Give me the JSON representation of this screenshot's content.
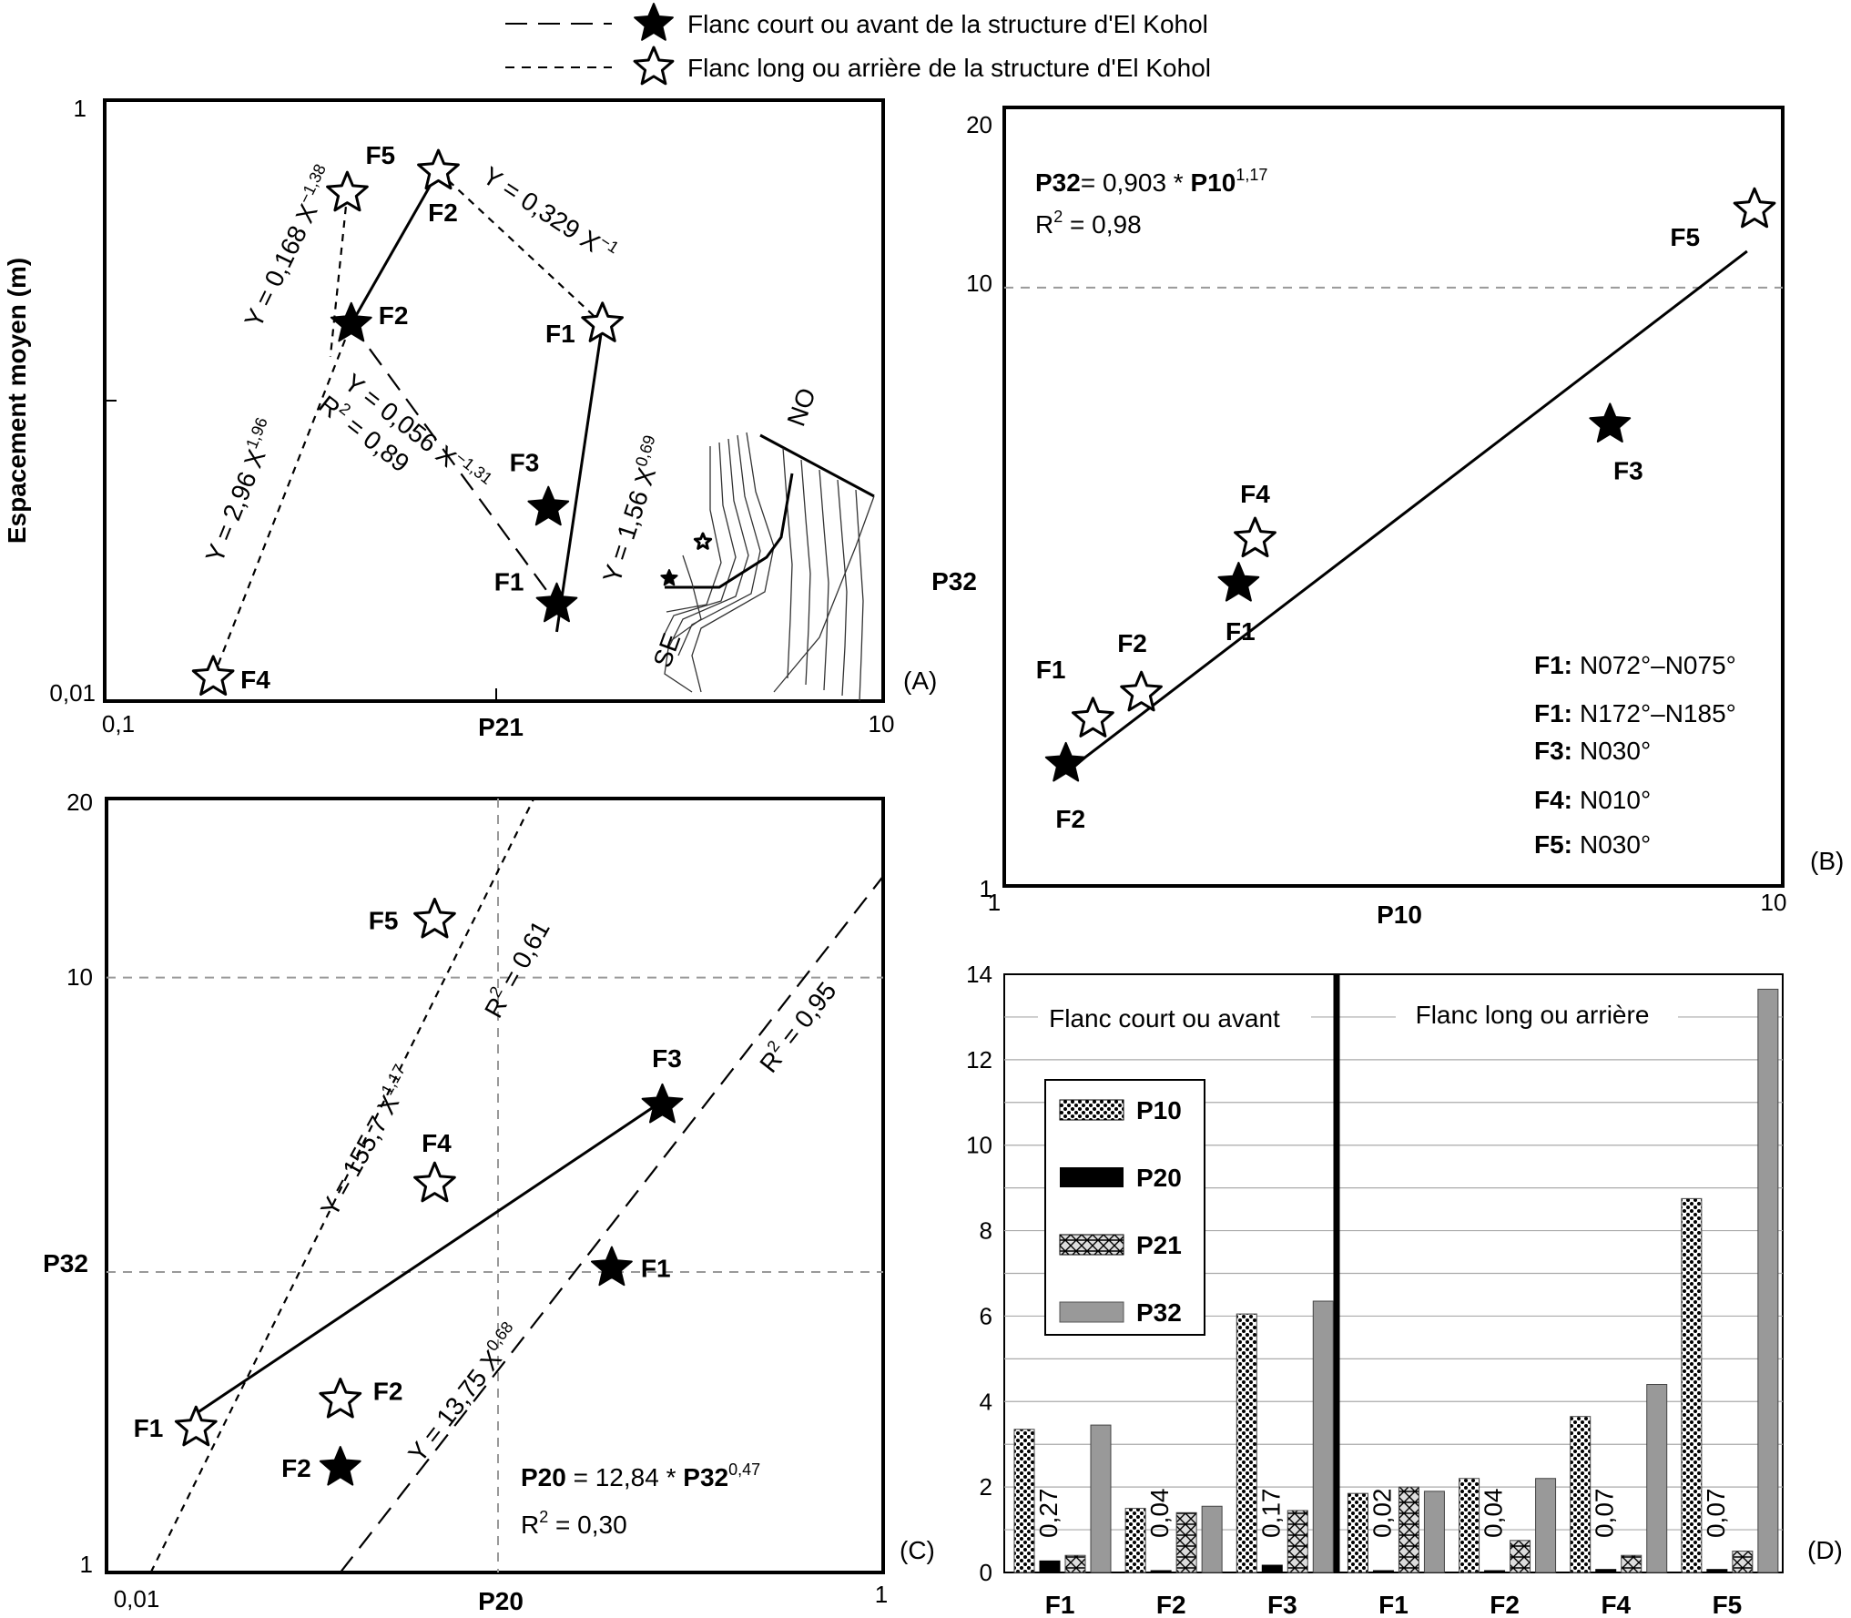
{
  "legend": {
    "items": [
      {
        "line": "long-dash",
        "marker": "filled-star",
        "label": "Flanc court ou avant de la structure d'El Kohol"
      },
      {
        "line": "short-dash",
        "marker": "open-star",
        "label": "Flanc long ou arrière de la structure d'El Kohol"
      }
    ]
  },
  "chart_data": [
    {
      "panel": "(A)",
      "type": "scatter",
      "xlabel": "P21",
      "ylabel": "Espacement moyen (m)",
      "xscale": "log",
      "yscale": "log",
      "xlim": [
        0.1,
        10
      ],
      "ylim": [
        0.01,
        1
      ],
      "xticks": [
        "0,1",
        "10"
      ],
      "yticks": [
        "0,01",
        "1"
      ],
      "points": [
        {
          "label": "F5",
          "x": 0.42,
          "y": 0.49,
          "marker": "open"
        },
        {
          "label": "F2",
          "x": 0.72,
          "y": 0.58,
          "marker": "open"
        },
        {
          "label": "F1",
          "x": 1.9,
          "y": 0.18,
          "marker": "open"
        },
        {
          "label": "F4",
          "x": 0.19,
          "y": 0.012,
          "marker": "open"
        },
        {
          "label": "F2",
          "x": 0.43,
          "y": 0.18,
          "marker": "filled"
        },
        {
          "label": "F3",
          "x": 1.38,
          "y": 0.044,
          "marker": "filled"
        },
        {
          "label": "F1",
          "x": 1.45,
          "y": 0.021,
          "marker": "filled"
        }
      ],
      "fits": [
        {
          "label": "Y = 0,168 X",
          "exp": "−1,38",
          "style": "short-dash",
          "x": [
            0.42,
            0.38
          ],
          "y": [
            0.49,
            0.14
          ]
        },
        {
          "label": "Y = 0,329 X",
          "exp": "−1",
          "style": "short-dash",
          "x": [
            0.72,
            1.9
          ],
          "y": [
            0.58,
            0.18
          ]
        },
        {
          "label": "Y = 0,056 X",
          "exp": "−1,31",
          "r2": "R",
          "r2_value": " = 0,89",
          "style": "long-dash",
          "x": [
            0.43,
            1.45
          ],
          "y": [
            0.18,
            0.021
          ]
        },
        {
          "label": "Y = 2,96 X",
          "exp": "1,96",
          "style": "short-dash",
          "x": [
            0.19,
            0.43
          ],
          "y": [
            0.012,
            0.18
          ]
        },
        {
          "label": "Y = 1,56 X",
          "exp": "0,69",
          "style": "solid",
          "x": [
            1.9,
            1.45
          ],
          "y": [
            0.18,
            0.017
          ]
        },
        {
          "style": "solid",
          "x": [
            0.43,
            0.72
          ],
          "y": [
            0.18,
            0.58
          ]
        }
      ],
      "inset": {
        "top_label": "NO",
        "bottom_label": "SE"
      }
    },
    {
      "panel": "(B)",
      "type": "scatter",
      "xlabel": "P10",
      "ylabel": "P32",
      "xscale": "log",
      "yscale": "log",
      "xlim": [
        1,
        10
      ],
      "ylim": [
        1,
        20
      ],
      "xticks": [
        "1",
        "10"
      ],
      "yticks": [
        "1",
        "10",
        "20"
      ],
      "equation": {
        "lhs": "P32",
        "mid": "= 0,903 * ",
        "var": "P10",
        "exp": "1,17"
      },
      "r2": {
        "label": "R",
        "value": " = 0,98"
      },
      "points": [
        {
          "label": "F5",
          "x": 9.2,
          "y": 13.5,
          "marker": "open"
        },
        {
          "label": "F4",
          "x": 2.1,
          "y": 3.8,
          "marker": "open"
        },
        {
          "label": "F2",
          "x": 1.5,
          "y": 2.1,
          "marker": "open"
        },
        {
          "label": "F1",
          "x": 1.3,
          "y": 1.9,
          "marker": "open"
        },
        {
          "label": "F3",
          "x": 6.0,
          "y": 5.9,
          "marker": "filled"
        },
        {
          "label": "F1",
          "x": 2.0,
          "y": 3.2,
          "marker": "filled"
        },
        {
          "label": "F2",
          "x": 1.2,
          "y": 1.6,
          "marker": "filled"
        }
      ],
      "fit": {
        "style": "solid",
        "x": [
          1.2,
          9.0
        ],
        "y": [
          1.55,
          11.5
        ]
      },
      "orientations": [
        {
          "name": "F1:",
          "value": "N072°–N075°"
        },
        {
          "name": "F1:",
          "value": "N172°–N185°"
        },
        {
          "name": "F3:",
          "value": "N030°"
        },
        {
          "name": "F4:",
          "value": "N010°"
        },
        {
          "name": "F5:",
          "value": "N030°"
        }
      ]
    },
    {
      "panel": "(C)",
      "type": "scatter",
      "xlabel": "P20",
      "ylabel": "P32",
      "xscale": "log",
      "yscale": "log",
      "xlim": [
        0.01,
        1
      ],
      "ylim": [
        1,
        20
      ],
      "xticks": [
        "0,01",
        "1"
      ],
      "yticks": [
        "1",
        "10",
        "20"
      ],
      "equation": {
        "lhs": "P20",
        "mid": " = 12,84 * ",
        "var": "P32",
        "exp": "0,47"
      },
      "r2": {
        "label": "R",
        "value": " = 0,30"
      },
      "points": [
        {
          "label": "F5",
          "x": 0.07,
          "y": 12.5,
          "marker": "open"
        },
        {
          "label": "F4",
          "x": 0.07,
          "y": 4.5,
          "marker": "open"
        },
        {
          "label": "F2",
          "x": 0.04,
          "y": 1.95,
          "marker": "open"
        },
        {
          "label": "F1",
          "x": 0.017,
          "y": 1.75,
          "marker": "open"
        },
        {
          "label": "F3",
          "x": 0.27,
          "y": 6.1,
          "marker": "filled"
        },
        {
          "label": "F1",
          "x": 0.2,
          "y": 3.25,
          "marker": "filled"
        },
        {
          "label": "F2",
          "x": 0.04,
          "y": 1.5,
          "marker": "filled"
        }
      ],
      "fits": [
        {
          "label": "Y = 155,7 X",
          "exp": "1,17",
          "r2": "R",
          "r2_value": " = 0,61",
          "style": "short-dash",
          "x": [
            0.013,
            0.126
          ],
          "y": [
            1,
            20
          ]
        },
        {
          "label": "Y = 13,75 X",
          "exp": "0,68",
          "r2": "R",
          "r2_value": " = 0,95",
          "style": "long-dash",
          "x": [
            0.04,
            1
          ],
          "y": [
            1,
            14.8
          ]
        },
        {
          "style": "solid",
          "x": [
            0.017,
            0.27
          ],
          "y": [
            1.85,
            6.2
          ]
        }
      ]
    },
    {
      "panel": "(D)",
      "type": "bar",
      "ylim": [
        0,
        14
      ],
      "yticks": [
        "0",
        "2",
        "4",
        "6",
        "8",
        "10",
        "12",
        "14"
      ],
      "categories": [
        "F1",
        "F2",
        "F3",
        "F1",
        "F2",
        "F4",
        "F5"
      ],
      "groups": [
        {
          "label": "Flanc court ou avant",
          "categories": [
            0,
            1,
            2
          ]
        },
        {
          "label": "Flanc long ou arrière",
          "categories": [
            3,
            4,
            5,
            6
          ]
        }
      ],
      "series": [
        {
          "name": "P10",
          "pattern": "dots",
          "values": [
            3.35,
            1.5,
            6.05,
            1.85,
            2.2,
            3.65,
            8.75
          ]
        },
        {
          "name": "P20",
          "pattern": "black",
          "values": [
            0.27,
            0.04,
            0.17,
            0.02,
            0.04,
            0.07,
            0.07
          ]
        },
        {
          "name": "P21",
          "pattern": "cross",
          "values": [
            0.4,
            1.4,
            1.45,
            2.0,
            0.75,
            0.4,
            0.5
          ]
        },
        {
          "name": "P32",
          "pattern": "gray",
          "values": [
            3.45,
            1.55,
            6.35,
            1.9,
            2.2,
            4.4,
            13.65
          ]
        }
      ],
      "p20_labels": [
        "0,27",
        "0,04",
        "0,17",
        "0,02",
        "0,04",
        "0,07",
        "0,07"
      ]
    }
  ]
}
